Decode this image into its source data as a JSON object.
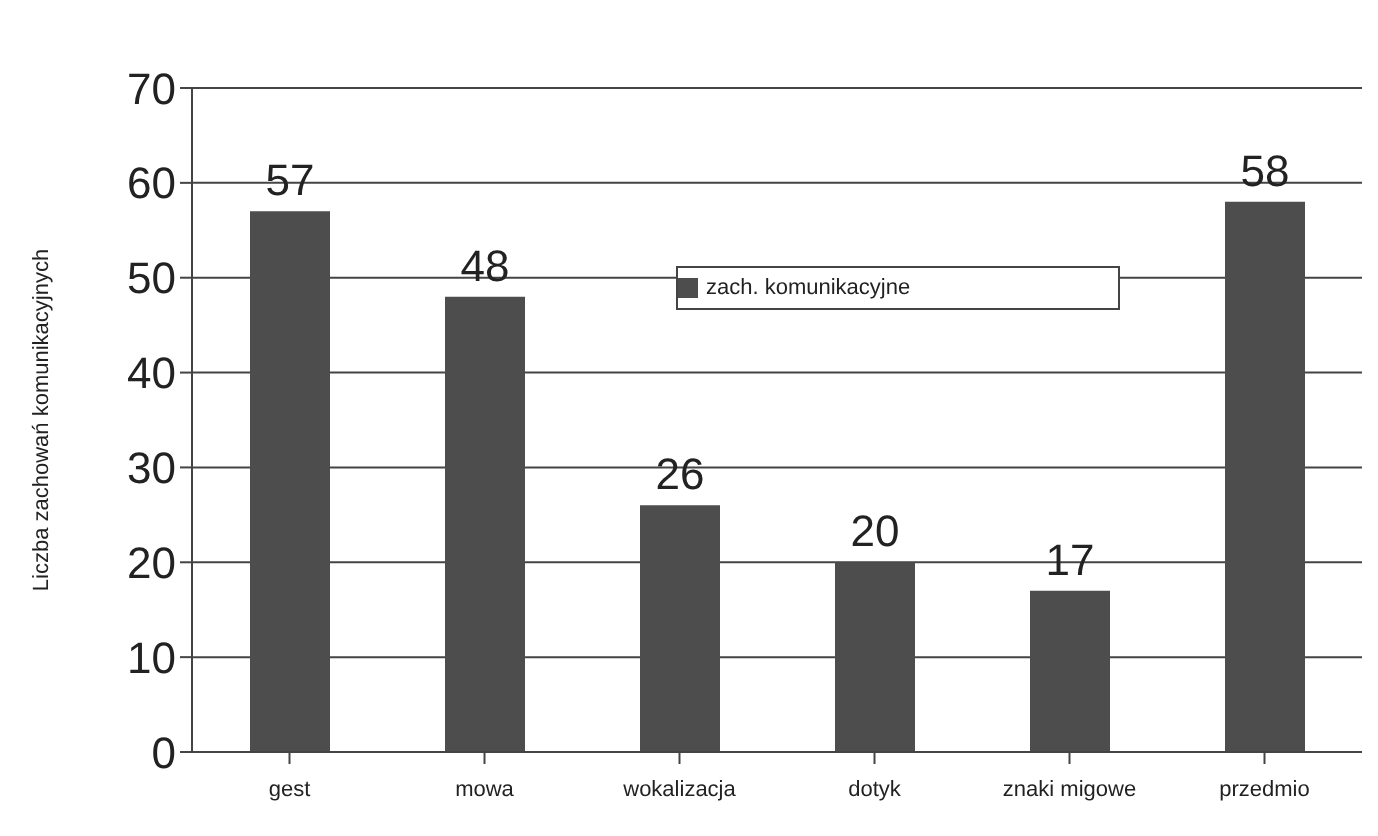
{
  "chart_data": {
    "type": "bar",
    "ylabel": "Liczba zachowań komunikacyjnych",
    "categories": [
      "gest",
      "mowa",
      "wokalizacja",
      "dotyk",
      "znaki migowe",
      "przedmio"
    ],
    "series": [
      {
        "name": "zach. komunikacyjne",
        "color": "#4d4d4d",
        "values": [
          57,
          48,
          26,
          20,
          17,
          58
        ]
      }
    ],
    "ylim": [
      0,
      70
    ],
    "yticks": [
      0,
      10,
      20,
      30,
      40,
      50,
      60,
      70
    ],
    "grid": "y",
    "legend": "top",
    "data_labels": true
  }
}
